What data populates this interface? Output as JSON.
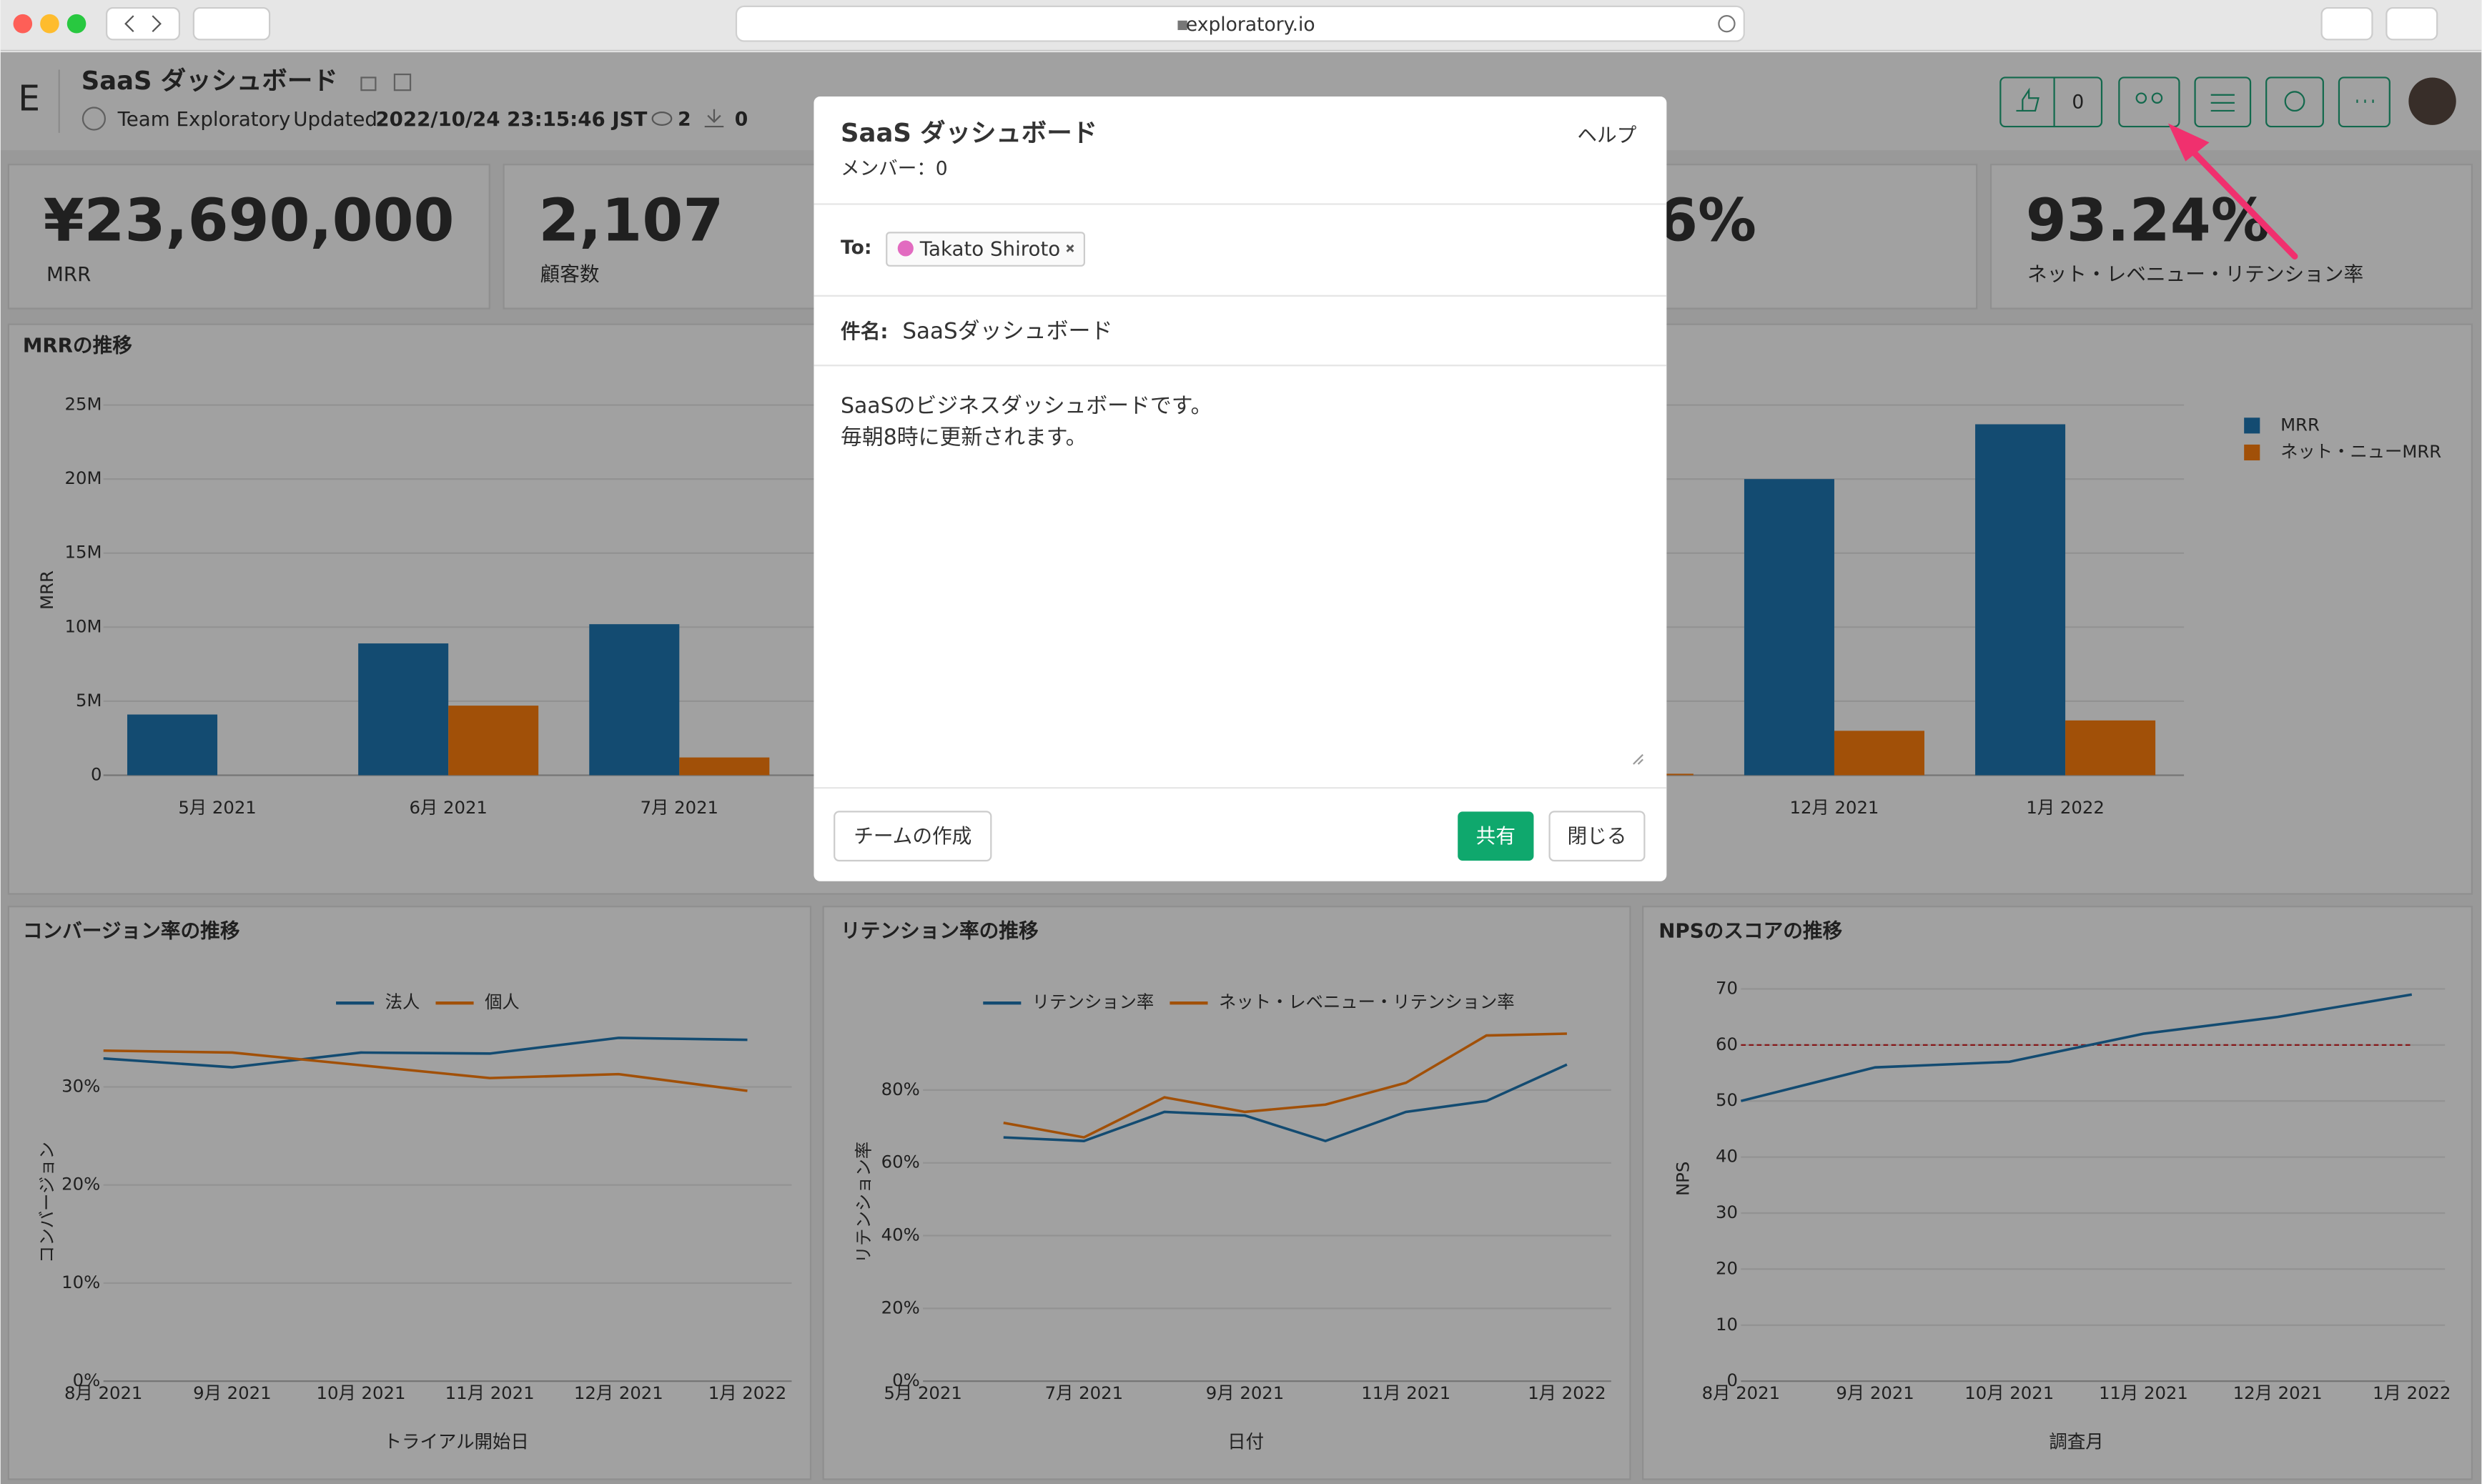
{
  "browser": {
    "url": "exploratory.io"
  },
  "header": {
    "logo": "E",
    "title": "SaaS ダッシュボード",
    "team": "Team Exploratory",
    "updated_label": "Updated",
    "updated": "2022/10/24 23:15:46 JST",
    "views": 2,
    "downloads": 0,
    "likes": 0
  },
  "kpis": [
    {
      "value": "¥23,690,000",
      "label": "MRR"
    },
    {
      "value": "2,107",
      "label": "顧客数"
    },
    {
      "value": "6%"
    },
    {
      "value": "93.24%",
      "label": "ネット・レベニュー・リテンション率"
    }
  ],
  "chart_data": [
    {
      "type": "bar",
      "title": "MRRの推移",
      "y_label": "MRR",
      "categories": [
        "5月 2021",
        "6月 2021",
        "7月 2021",
        null,
        null,
        null,
        null,
        "12月 2021",
        "1月 2022"
      ],
      "series": [
        {
          "name": "MRR",
          "color": "#1f77b4",
          "values": [
            4100000,
            8900000,
            10200000,
            null,
            null,
            null,
            null,
            20000000,
            23700000
          ]
        },
        {
          "name": "ネット・ニューMRR",
          "color": "#ff7f0e",
          "values": [
            null,
            4700000,
            1200000,
            null,
            null,
            null,
            100000,
            3000000,
            3700000
          ]
        }
      ],
      "ylim": [
        0,
        25000000
      ],
      "yticks": [
        0,
        {
          "value": 5000000,
          "label": "5M"
        },
        {
          "value": 10000000,
          "label": "10M"
        },
        {
          "value": 15000000,
          "label": "15M"
        },
        {
          "value": 20000000,
          "label": "20M"
        },
        {
          "value": 25000000,
          "label": "25M"
        }
      ],
      "grid": true,
      "legend": "right"
    },
    {
      "type": "line",
      "title": "コンバージョン率の推移",
      "x_label": "トライアル開始日",
      "y_label": "コンバージョン",
      "categories": [
        "8月 2021",
        "9月 2021",
        "10月 2021",
        "11月 2021",
        "12月 2021",
        "1月 2022"
      ],
      "series": [
        {
          "name": "法人",
          "color": "#1f77b4",
          "values": [
            32.9,
            32.0,
            33.5,
            33.4,
            35.0,
            34.8
          ]
        },
        {
          "name": "個人",
          "color": "#ff7f0e",
          "values": [
            33.7,
            33.5,
            32.2,
            30.9,
            31.3,
            29.6
          ]
        }
      ],
      "ylim": [
        0,
        37
      ],
      "yticks": [
        {
          "value": 0,
          "label": "0%"
        },
        {
          "value": 10,
          "label": "10%"
        },
        {
          "value": 20,
          "label": "20%"
        },
        {
          "value": 30,
          "label": "30%"
        }
      ],
      "grid": true,
      "legend": "top"
    },
    {
      "type": "line",
      "title": "リテンション率の推移",
      "x_label": "日付",
      "y_label": "リテンション率",
      "categories": [
        "5月 2021",
        null,
        "7月 2021",
        null,
        "9月 2021",
        null,
        "11月 2021",
        null,
        "1月 2022"
      ],
      "series": [
        {
          "name": "リテンション率",
          "color": "#1f77b4",
          "values": [
            null,
            67,
            66,
            74,
            73,
            66,
            74,
            77,
            87
          ]
        },
        {
          "name": "ネット・レベニュー・リテンション率",
          "color": "#ff7f0e",
          "values": [
            null,
            71,
            67,
            78,
            74,
            76,
            82,
            95,
            95.5
          ]
        }
      ],
      "ylim": [
        0,
        100
      ],
      "yticks": [
        {
          "value": 0,
          "label": "0%"
        },
        {
          "value": 20,
          "label": "20%"
        },
        {
          "value": 40,
          "label": "40%"
        },
        {
          "value": 60,
          "label": "60%"
        },
        {
          "value": 80,
          "label": "80%"
        }
      ],
      "grid": true,
      "legend": "top"
    },
    {
      "type": "line",
      "title": "NPSのスコアの推移",
      "x_label": "調査月",
      "y_label": "NPS",
      "categories": [
        "8月 2021",
        "9月 2021",
        "10月 2021",
        "11月 2021",
        "12月 2021",
        "1月 2022"
      ],
      "series": [
        {
          "color": "#1f77b4",
          "values": [
            50,
            56,
            57,
            62,
            65,
            69
          ]
        }
      ],
      "reference_line": {
        "value": 60,
        "color": "#d62728"
      },
      "ylim": [
        0,
        72
      ],
      "yticks": [
        0,
        10,
        20,
        30,
        40,
        50,
        60,
        70
      ],
      "grid": true
    }
  ],
  "modal": {
    "title": "SaaS ダッシュボード",
    "members": "メンバー：0",
    "help": "ヘルプ",
    "to_label": "To:",
    "recipient": "Takato Shiroto",
    "subject_label": "件名:",
    "subject": "SaaSダッシュボード",
    "body": [
      "SaaSのビジネスダッシュボードです。",
      "毎朝8時に更新されます。"
    ],
    "buttons": {
      "create_team": "チームの作成",
      "share": "共有",
      "close": "閉じる"
    }
  }
}
